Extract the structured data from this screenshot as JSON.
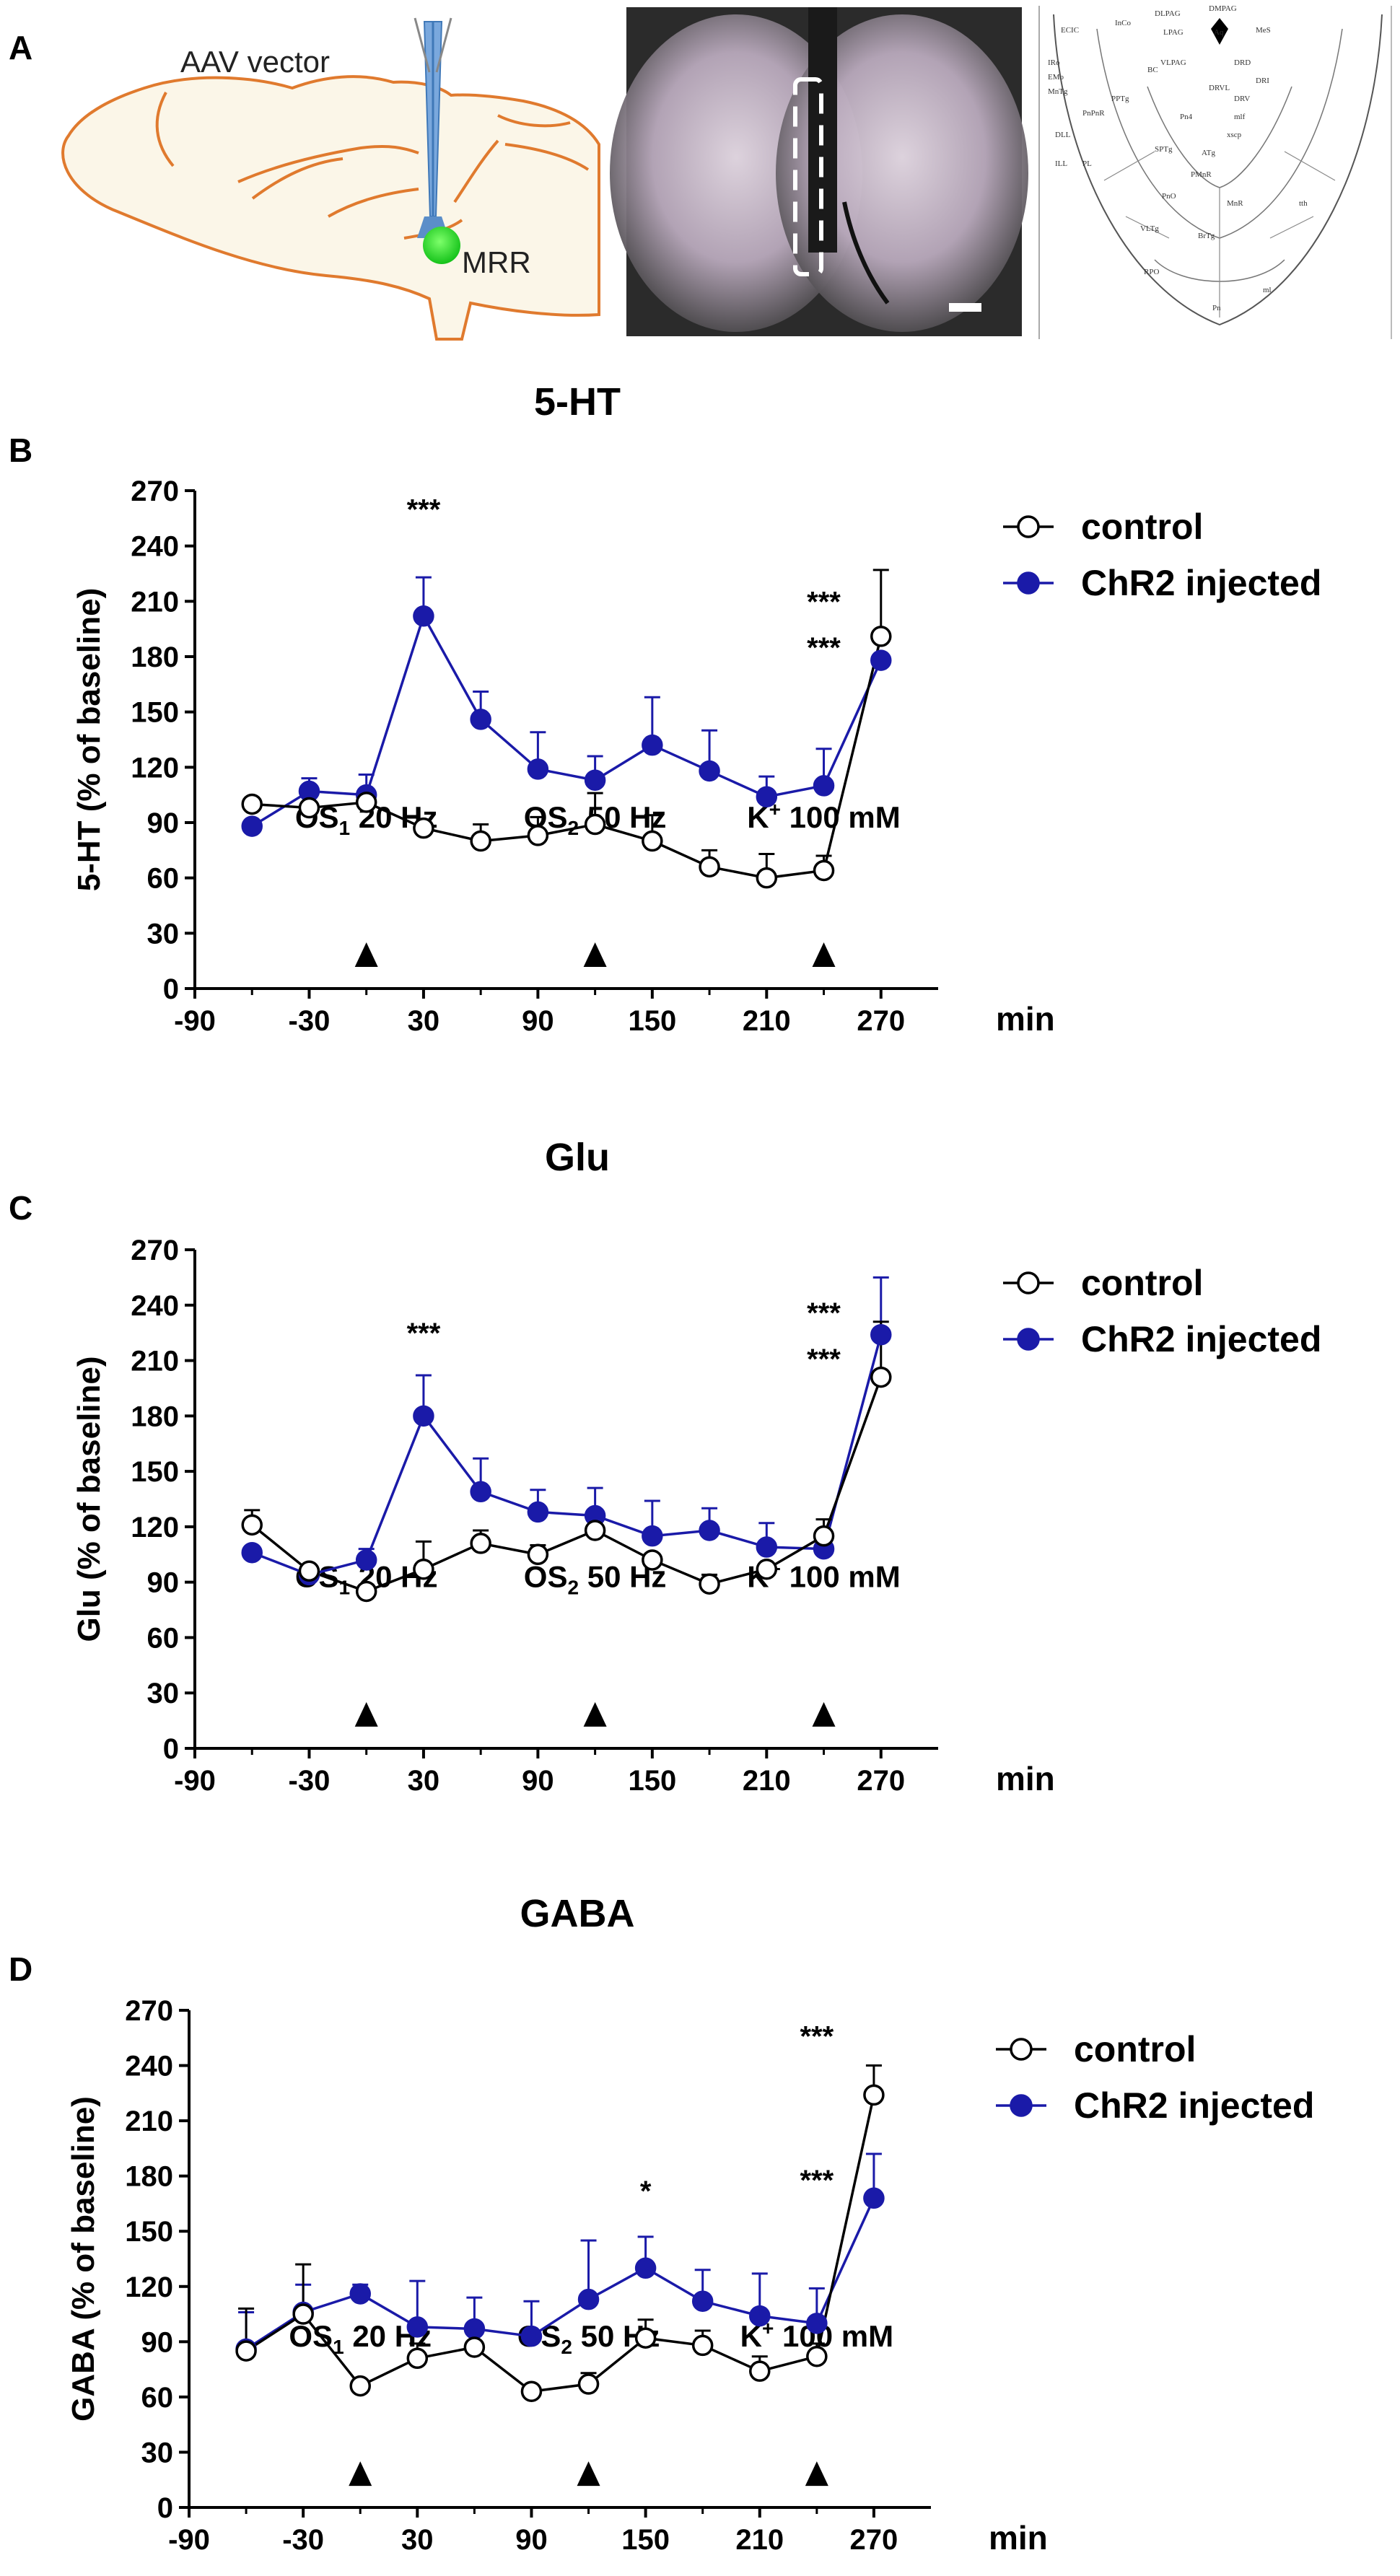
{
  "panel_a": {
    "label": "A",
    "vector_label": "AAV vector",
    "target_label": "MRR",
    "atlas_labels": [
      "ECIC",
      "InCo",
      "DLPAG",
      "DMPAG",
      "Aq",
      "MeS",
      "LPAG",
      "DRD",
      "VLPAG",
      "BC",
      "PPTg",
      "DRV",
      "DRVL",
      "DRI",
      "Pn4",
      "mlf",
      "DLL",
      "ILL",
      "PL",
      "xscp",
      "SPTg",
      "ATg",
      "PMnR",
      "PnO",
      "MnR",
      "VLTg",
      "BrTg",
      "RPO",
      "Pn",
      "ml",
      "tth",
      "IRo",
      "EMo",
      "MnTg",
      "PnPnR"
    ]
  },
  "colors": {
    "control": "#000000",
    "chr2": "#1a1aa8",
    "brain_outline": "#e07a2e",
    "brain_fill": "#fbf6e8",
    "virus": "#22dd22",
    "pipette": "#5b8ec9"
  },
  "legend": {
    "control": "control",
    "chr2": "ChR2 injected"
  },
  "chart_data": [
    {
      "panel": "B",
      "type": "line",
      "title": "5-HT",
      "ylabel": "5-HT (% of baseline)",
      "xlabel": "min",
      "xlim": [
        -90,
        300
      ],
      "ylim": [
        0,
        270
      ],
      "xticks": [
        "-90",
        "-30",
        "30",
        "90",
        "150",
        "210",
        "270"
      ],
      "yticks": [
        "0",
        "30",
        "60",
        "90",
        "120",
        "150",
        "180",
        "210",
        "240",
        "270"
      ],
      "stimuli": [
        {
          "x": 0,
          "pre": "OS",
          "sub": "1",
          "post": " 20 Hz"
        },
        {
          "x": 120,
          "pre": "OS",
          "sub": "2",
          "post": " 50 Hz"
        },
        {
          "x": 240,
          "pre": "K",
          "sup": "+",
          "post": " 100 mM"
        }
      ],
      "significance": [
        {
          "x": 30,
          "y": 260,
          "text": "***"
        },
        {
          "x": 240,
          "y": 210,
          "text": "***"
        },
        {
          "x": 240,
          "y": 185,
          "text": "***"
        }
      ],
      "x": [
        -60,
        -30,
        0,
        30,
        60,
        90,
        120,
        150,
        180,
        210,
        240,
        270
      ],
      "series": [
        {
          "name": "control",
          "values": [
            100,
            98,
            101,
            87,
            80,
            83,
            89,
            80,
            66,
            60,
            64,
            191
          ],
          "err": [
            0,
            0,
            4,
            0,
            9,
            10,
            17,
            14,
            9,
            13,
            8,
            36
          ],
          "fill": "open"
        },
        {
          "name": "ChR2 injected",
          "values": [
            88,
            107,
            105,
            202,
            146,
            119,
            113,
            132,
            118,
            104,
            110,
            178
          ],
          "err": [
            0,
            7,
            11,
            21,
            15,
            20,
            13,
            26,
            22,
            11,
            20,
            0
          ],
          "fill": "filled"
        }
      ]
    },
    {
      "panel": "C",
      "type": "line",
      "title": "Glu",
      "ylabel": "Glu (% of baseline)",
      "xlabel": "min",
      "xlim": [
        -90,
        300
      ],
      "ylim": [
        0,
        270
      ],
      "xticks": [
        "-90",
        "-30",
        "30",
        "90",
        "150",
        "210",
        "270"
      ],
      "yticks": [
        "0",
        "30",
        "60",
        "90",
        "120",
        "150",
        "180",
        "210",
        "240",
        "270"
      ],
      "stimuli": [
        {
          "x": 0,
          "pre": "OS",
          "sub": "1",
          "post": " 20 Hz"
        },
        {
          "x": 120,
          "pre": "OS",
          "sub": "2",
          "post": " 50 Hz"
        },
        {
          "x": 240,
          "pre": "K",
          "sup": "+",
          "post": " 100 mM"
        }
      ],
      "significance": [
        {
          "x": 30,
          "y": 225,
          "text": "***"
        },
        {
          "x": 240,
          "y": 236,
          "text": "***"
        },
        {
          "x": 240,
          "y": 211,
          "text": "***"
        }
      ],
      "x": [
        -60,
        -30,
        0,
        30,
        60,
        90,
        120,
        150,
        180,
        210,
        240,
        270
      ],
      "series": [
        {
          "name": "control",
          "values": [
            121,
            96,
            85,
            97,
            111,
            105,
            118,
            102,
            89,
            97,
            115,
            201
          ],
          "err": [
            8,
            0,
            0,
            15,
            7,
            5,
            6,
            0,
            5,
            0,
            9,
            30
          ],
          "fill": "open"
        },
        {
          "name": "ChR2 injected",
          "values": [
            106,
            94,
            102,
            180,
            139,
            128,
            126,
            115,
            118,
            109,
            108,
            224
          ],
          "err": [
            0,
            0,
            6,
            22,
            18,
            12,
            15,
            19,
            12,
            13,
            0,
            31
          ],
          "fill": "filled"
        }
      ]
    },
    {
      "panel": "D",
      "type": "line",
      "title": "GABA",
      "ylabel": "GABA (% of baseline)",
      "xlabel": "min",
      "xlim": [
        -90,
        300
      ],
      "ylim": [
        0,
        270
      ],
      "xticks": [
        "-90",
        "-30",
        "30",
        "90",
        "150",
        "210",
        "270"
      ],
      "yticks": [
        "0",
        "30",
        "60",
        "90",
        "120",
        "150",
        "180",
        "210",
        "240",
        "270"
      ],
      "stimuli": [
        {
          "x": 0,
          "pre": "OS",
          "sub": "1",
          "post": " 20 Hz"
        },
        {
          "x": 120,
          "pre": "OS",
          "sub": "2",
          "post": " 50 Hz"
        },
        {
          "x": 240,
          "pre": "K",
          "sup": "+",
          "post": " 100 mM"
        }
      ],
      "significance": [
        {
          "x": 150,
          "y": 172,
          "text": "*"
        },
        {
          "x": 240,
          "y": 256,
          "text": "***"
        },
        {
          "x": 240,
          "y": 178,
          "text": "***"
        }
      ],
      "x": [
        -60,
        -30,
        0,
        30,
        60,
        90,
        120,
        150,
        180,
        210,
        240,
        270
      ],
      "series": [
        {
          "name": "control",
          "values": [
            85,
            105,
            66,
            81,
            87,
            63,
            67,
            92,
            88,
            74,
            82,
            224
          ],
          "err": [
            23,
            27,
            0,
            8,
            11,
            0,
            6,
            10,
            8,
            8,
            7,
            16
          ],
          "fill": "open"
        },
        {
          "name": "ChR2 injected",
          "values": [
            86,
            106,
            116,
            98,
            97,
            93,
            113,
            130,
            112,
            104,
            100,
            168
          ],
          "err": [
            20,
            15,
            5,
            25,
            17,
            19,
            32,
            17,
            17,
            23,
            19,
            24
          ],
          "fill": "filled"
        }
      ]
    }
  ]
}
